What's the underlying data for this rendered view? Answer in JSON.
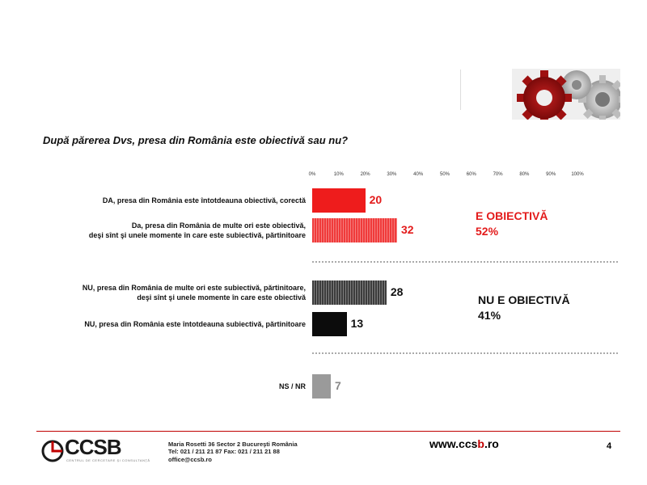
{
  "question": "După părerea Dvs, presa din România este obiectivă sau nu?",
  "chart_data": {
    "type": "bar",
    "orientation": "horizontal",
    "xlim": [
      0,
      100
    ],
    "ticks": [
      "0%",
      "10%",
      "20%",
      "30%",
      "40%",
      "50%",
      "60%",
      "70%",
      "80%",
      "90%",
      "100%"
    ],
    "items": [
      {
        "label_lines": [
          "DA, presa din România este întotdeauna obiectivă, corectă"
        ],
        "value": 20,
        "color": "#ee1c1c",
        "text_color": "#e31b1b",
        "hatch": false
      },
      {
        "label_lines": [
          "Da, presa din România de multe ori este obiectivă,",
          "deşi sînt şi unele momente în care este subiectivă, părtinitoare"
        ],
        "value": 32,
        "color": "#f03a3a",
        "text_color": "#e31b1b",
        "hatch": true
      },
      {
        "label_lines": [
          "NU, presa din România de multe ori este subiectivă, părtinitoare,",
          "deşi sînt şi unele momente în care este obiectivă"
        ],
        "value": 28,
        "color": "#3c3c3c",
        "text_color": "#111111",
        "hatch": true
      },
      {
        "label_lines": [
          "NU, presa din România este întotdeauna subiectivă, părtinitoare"
        ],
        "value": 13,
        "color": "#0c0c0c",
        "text_color": "#111111",
        "hatch": false
      },
      {
        "label_lines": [
          "NS / NR"
        ],
        "value": 7,
        "color": "#9a9a9a",
        "text_color": "#888888",
        "hatch": false
      }
    ],
    "groups": [
      {
        "lines": [
          "E OBIECTIVĂ",
          "52%"
        ],
        "color": "#e31b1b"
      },
      {
        "lines": [
          "NU E OBIECTIVĂ",
          "41%"
        ],
        "color": "#111111"
      }
    ]
  },
  "footer": {
    "logo": "CCSB",
    "logo_sub": "CENTRUL DE CERCETARE ŞI CONSULTANŢĂ",
    "address_line1": "Maria Rosetti 36      Sector 2  Bucureşti       România",
    "address_line2": "Tel: 021 / 211 21 87     Fax: 021 / 211 21 88",
    "address_line3": "office@ccsb.ro",
    "website_prefix": "www.ccs",
    "website_accent": "b",
    "website_suffix": ".ro",
    "page_number": "4"
  }
}
